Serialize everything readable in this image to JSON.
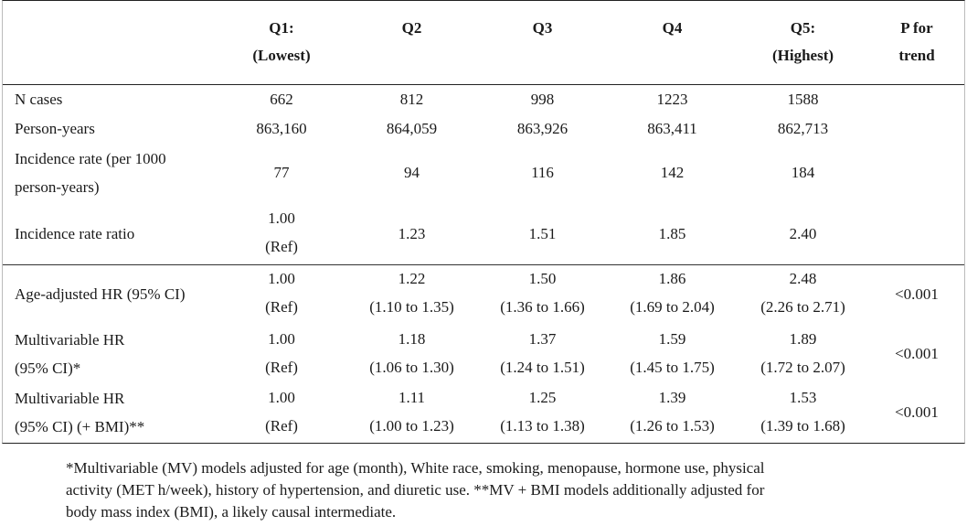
{
  "header": {
    "q1_a": "Q1:",
    "q1_b": "(Lowest)",
    "q2": "Q2",
    "q3": "Q3",
    "q4": "Q4",
    "q5_a": "Q5:",
    "q5_b": "(Highest)",
    "p_a": "P for",
    "p_b": "trend"
  },
  "rows": {
    "n_cases": {
      "label": "N cases",
      "values": [
        "662",
        "812",
        "998",
        "1223",
        "1588"
      ]
    },
    "person_years": {
      "label": "Person-years",
      "values": [
        "863,160",
        "864,059",
        "863,926",
        "863,411",
        "862,713"
      ]
    },
    "incidence_rate": {
      "label_a": "Incidence rate (per 1000",
      "label_b": "person-years)",
      "values": [
        "77",
        "94",
        "116",
        "142",
        "184"
      ]
    },
    "irr": {
      "label": "Incidence rate ratio",
      "q1_a": "1.00",
      "q1_b": "(Ref)",
      "values": [
        "1.23",
        "1.51",
        "1.85",
        "2.40"
      ]
    },
    "age_adj": {
      "label": "Age-adjusted HR (95% CI)",
      "q1_a": "1.00",
      "q1_b": "(Ref)",
      "est": [
        "1.22",
        "1.50",
        "1.86",
        "2.48"
      ],
      "ci": [
        "(1.10 to 1.35)",
        "(1.36 to 1.66)",
        "(1.69 to 2.04)",
        "(2.26 to 2.71)"
      ],
      "p": "<0.001"
    },
    "mv": {
      "label_a": "Multivariable HR",
      "label_b": "(95% CI)*",
      "q1_a": "1.00",
      "q1_b": "(Ref)",
      "est": [
        "1.18",
        "1.37",
        "1.59",
        "1.89"
      ],
      "ci": [
        "(1.06 to 1.30)",
        "(1.24 to 1.51)",
        "(1.45 to 1.75)",
        "(1.72 to 2.07)"
      ],
      "p": "<0.001"
    },
    "mv_bmi": {
      "label_a": "Multivariable HR",
      "label_b": "(95% CI) (+ BMI)**",
      "q1_a": "1.00",
      "q1_b": "(Ref)",
      "est": [
        "1.11",
        "1.25",
        "1.39",
        "1.53"
      ],
      "ci": [
        "(1.00 to 1.23)",
        "(1.13 to 1.38)",
        "(1.26 to 1.53)",
        "(1.39 to 1.68)"
      ],
      "p": "<0.001"
    }
  },
  "footnote": {
    "line1": "*Multivariable (MV) models adjusted for age (month), White race, smoking, menopause, hormone use, physical",
    "line2": "activity (MET h/week), history of hypertension, and diuretic use.  **MV + BMI models additionally adjusted for",
    "line3": "body mass index (BMI), a likely causal intermediate."
  }
}
